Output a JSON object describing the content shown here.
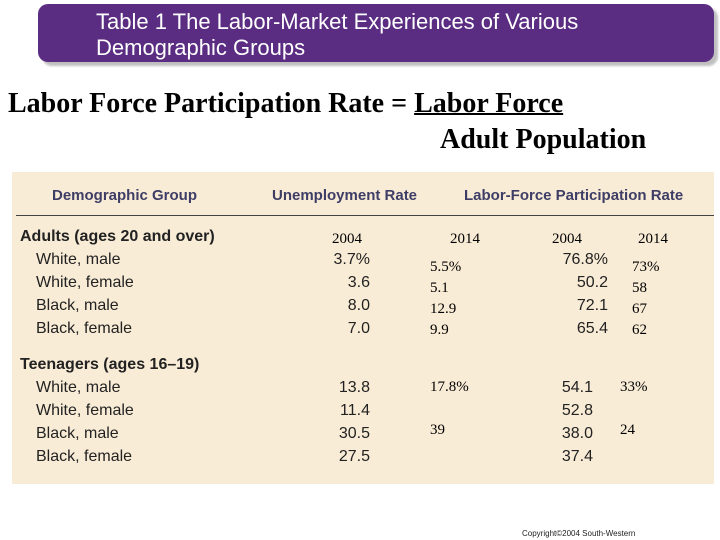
{
  "title": {
    "line1": "Table 1 The Labor-Market Experiences of Various",
    "line2": "Demographic Groups"
  },
  "formula": {
    "lhs": "Labor Force Participation Rate = ",
    "numerator": "Labor Force",
    "denominator": "Adult Population"
  },
  "table": {
    "headers": {
      "group": "Demographic Group",
      "unemployment": "Unemployment Rate",
      "participation": "Labor-Force Participation Rate"
    },
    "year_labels": {
      "u_2004": "2004",
      "u_2014": "2014",
      "p_2004": "2004",
      "p_2014": "2014"
    },
    "adults": {
      "label": "Adults (ages 20 and over)",
      "rows": [
        {
          "name": "White, male",
          "u2004": "3.7%",
          "u2014": "5.5%",
          "p2004": "76.8%",
          "p2014": "73%"
        },
        {
          "name": "White, female",
          "u2004": "3.6",
          "u2014": "5.1",
          "p2004": "50.2",
          "p2014": "58"
        },
        {
          "name": "Black, male",
          "u2004": "8.0",
          "u2014": "12.9",
          "p2004": "72.1",
          "p2014": "67"
        },
        {
          "name": "Black, female",
          "u2004": "7.0",
          "u2014": "9.9",
          "p2004": "65.4",
          "p2014": "62"
        }
      ]
    },
    "teens": {
      "label": "Teenagers (ages 16–19)",
      "rows": [
        {
          "name": "White, male",
          "u2004": "13.8",
          "p2004": "54.1"
        },
        {
          "name": "White, female",
          "u2004": "11.4",
          "p2004": "52.8"
        },
        {
          "name": "Black, male",
          "u2004": "30.5",
          "p2004": "38.0"
        },
        {
          "name": "Black, female",
          "u2004": "27.5",
          "p2004": "37.4"
        }
      ],
      "annotations": {
        "u2014_white": "17.8%",
        "u2014_black": "39",
        "p2014_white": "33%",
        "p2014_black": "24"
      }
    }
  },
  "copyright": "Copyright©2004 South-Western"
}
